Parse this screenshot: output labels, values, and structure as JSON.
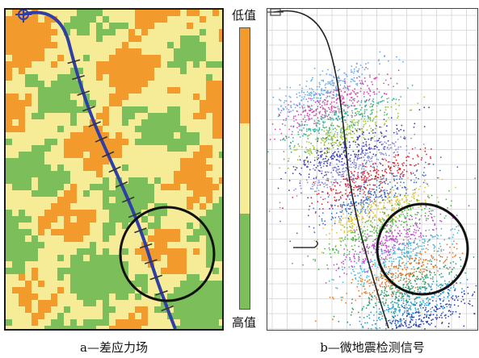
{
  "figure": {
    "panel_a": {
      "caption": "a—差应力场",
      "colors": {
        "low": "#f39a2c",
        "mid": "#f6ec98",
        "high": "#7cbf5a",
        "well": "#2f3fa6",
        "circle": "#111111"
      }
    },
    "legend": {
      "low_label": "低值",
      "high_label": "高值",
      "colors": [
        "#f39a2c",
        "#f6ec98",
        "#7cbf5a"
      ],
      "fractions": [
        0.34,
        0.32,
        0.34
      ]
    },
    "panel_b": {
      "caption": "b—微地震检测信号",
      "stage_colors": [
        "#6aa8e8",
        "#d04bb0",
        "#3fae9a",
        "#9ac43a",
        "#3a3fb0",
        "#8a8fd8",
        "#d6262d",
        "#3b6fc7",
        "#e0c33a",
        "#52b848",
        "#c44bd2",
        "#4bb7d8",
        "#e07b28",
        "#2f9a6a",
        "#2a9fd6",
        "#2a3db5"
      ]
    }
  }
}
